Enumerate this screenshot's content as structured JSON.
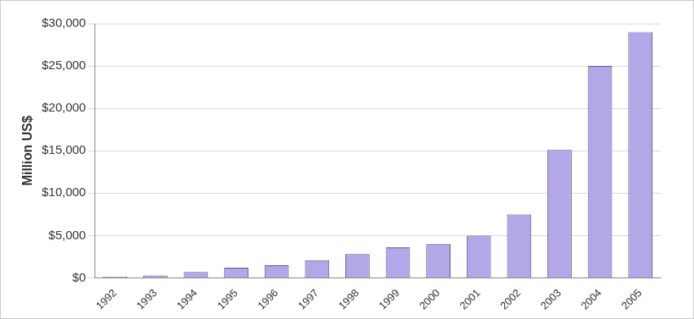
{
  "chart_data": {
    "type": "bar",
    "y_label": "Million US$",
    "categories": [
      "1992",
      "1993",
      "1994",
      "1995",
      "1996",
      "1997",
      "1998",
      "1999",
      "2000",
      "2001",
      "2002",
      "2003",
      "2004",
      "2005"
    ],
    "values": [
      150,
      300,
      700,
      1200,
      1500,
      2100,
      2800,
      3600,
      4000,
      5000,
      7500,
      15100,
      25000,
      29000
    ],
    "color": "#b3a7e8",
    "ylim": [
      0,
      30000
    ],
    "yticks": [
      {
        "value": 0,
        "label": "$0"
      },
      {
        "value": 5000,
        "label": "$5,000"
      },
      {
        "value": 10000,
        "label": "$10,000"
      },
      {
        "value": 15000,
        "label": "$15,000"
      },
      {
        "value": 20000,
        "label": "$20,000"
      },
      {
        "value": 25000,
        "label": "$25,000"
      },
      {
        "value": 30000,
        "label": "$30,000"
      }
    ],
    "grid": true
  }
}
